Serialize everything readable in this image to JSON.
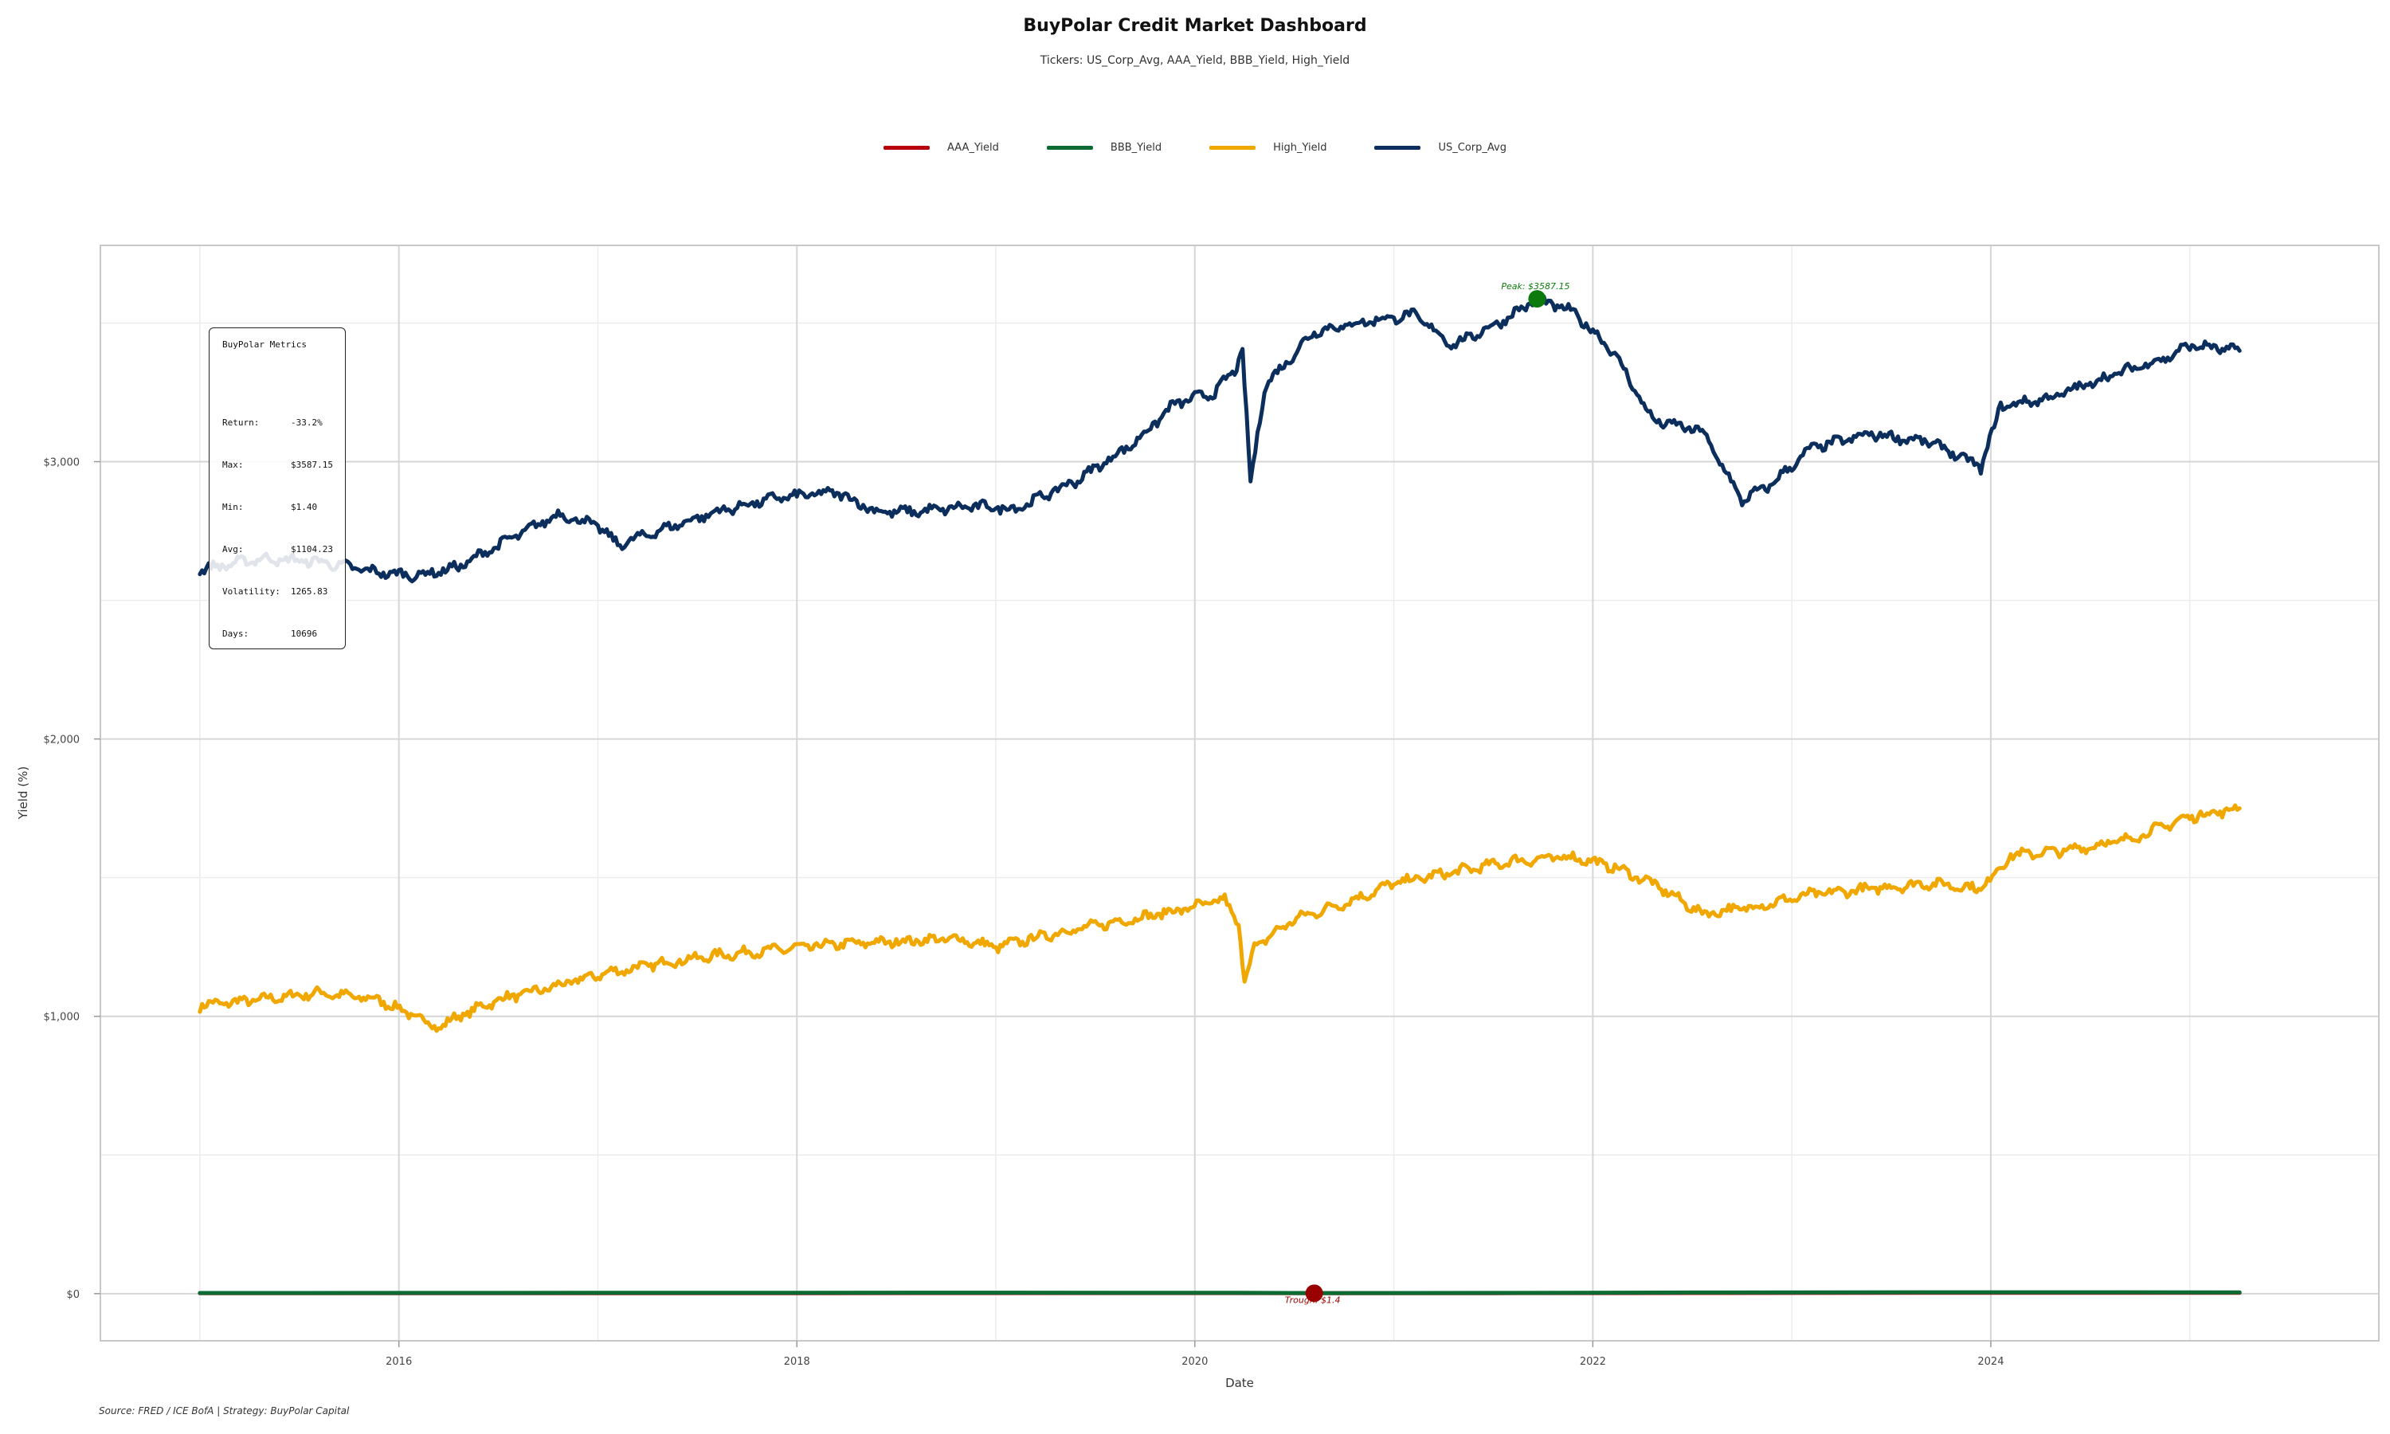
{
  "chart_data": {
    "type": "line",
    "title": "BuyPolar Credit Market Dashboard",
    "subtitle": "Tickers: US_Corp_Avg, AAA_Yield, BBB_Yield, High_Yield",
    "xlabel": "Date",
    "ylabel": "Yield (%)",
    "xlim": [
      2014.5,
      2025.95
    ],
    "ylim": [
      -170,
      3780
    ],
    "x_ticks": [
      2016,
      2018,
      2020,
      2022,
      2024
    ],
    "x_tick_labels": [
      "2016",
      "2018",
      "2020",
      "2022",
      "2024"
    ],
    "y_ticks": [
      0,
      1000,
      2000,
      3000
    ],
    "y_tick_labels": [
      "$0",
      "$1,000",
      "$2,000",
      "$3,000"
    ],
    "grid": true,
    "legend_position": "top",
    "series": [
      {
        "name": "AAA_Yield",
        "color": "#B8000A",
        "points": [
          [
            2015.0,
            1.5
          ],
          [
            2017.0,
            1.6
          ],
          [
            2019.0,
            2.2
          ],
          [
            2020.2,
            2.0
          ],
          [
            2020.6,
            1.4
          ],
          [
            2021.5,
            1.8
          ],
          [
            2022.5,
            2.5
          ],
          [
            2024.0,
            3.2
          ],
          [
            2025.25,
            3.0
          ]
        ]
      },
      {
        "name": "BBB_Yield",
        "color": "#0B6B32",
        "points": [
          [
            2015.0,
            2.5
          ],
          [
            2017.0,
            2.8
          ],
          [
            2019.0,
            3.5
          ],
          [
            2020.2,
            3.0
          ],
          [
            2020.6,
            2.2
          ],
          [
            2021.5,
            2.6
          ],
          [
            2022.5,
            4.0
          ],
          [
            2024.0,
            5.0
          ],
          [
            2025.25,
            4.8
          ]
        ]
      },
      {
        "name": "High_Yield",
        "color": "#F0A800",
        "points": [
          [
            2015.0,
            1040
          ],
          [
            2015.3,
            1060
          ],
          [
            2015.6,
            1085
          ],
          [
            2015.9,
            1060
          ],
          [
            2016.05,
            1010
          ],
          [
            2016.2,
            960
          ],
          [
            2016.3,
            1000
          ],
          [
            2016.5,
            1060
          ],
          [
            2016.8,
            1110
          ],
          [
            2017.0,
            1150
          ],
          [
            2017.3,
            1190
          ],
          [
            2017.6,
            1220
          ],
          [
            2017.9,
            1240
          ],
          [
            2018.2,
            1260
          ],
          [
            2018.5,
            1270
          ],
          [
            2018.8,
            1280
          ],
          [
            2019.0,
            1250
          ],
          [
            2019.3,
            1300
          ],
          [
            2019.6,
            1340
          ],
          [
            2019.9,
            1380
          ],
          [
            2020.15,
            1420
          ],
          [
            2020.22,
            1330
          ],
          [
            2020.25,
            1130
          ],
          [
            2020.3,
            1250
          ],
          [
            2020.5,
            1350
          ],
          [
            2020.8,
            1420
          ],
          [
            2021.0,
            1480
          ],
          [
            2021.3,
            1520
          ],
          [
            2021.6,
            1560
          ],
          [
            2021.9,
            1575
          ],
          [
            2022.1,
            1540
          ],
          [
            2022.3,
            1480
          ],
          [
            2022.55,
            1370
          ],
          [
            2022.85,
            1400
          ],
          [
            2023.1,
            1440
          ],
          [
            2023.4,
            1460
          ],
          [
            2023.7,
            1480
          ],
          [
            2023.95,
            1460
          ],
          [
            2024.1,
            1580
          ],
          [
            2024.4,
            1600
          ],
          [
            2024.7,
            1640
          ],
          [
            2025.0,
            1720
          ],
          [
            2025.25,
            1750
          ]
        ]
      },
      {
        "name": "US_Corp_Avg",
        "color": "#0B2E5C",
        "points": [
          [
            2015.0,
            2610
          ],
          [
            2015.3,
            2650
          ],
          [
            2015.6,
            2640
          ],
          [
            2015.9,
            2600
          ],
          [
            2016.1,
            2590
          ],
          [
            2016.3,
            2620
          ],
          [
            2016.5,
            2700
          ],
          [
            2016.8,
            2810
          ],
          [
            2017.0,
            2770
          ],
          [
            2017.1,
            2700
          ],
          [
            2017.3,
            2750
          ],
          [
            2017.6,
            2820
          ],
          [
            2017.9,
            2870
          ],
          [
            2018.2,
            2890
          ],
          [
            2018.4,
            2820
          ],
          [
            2018.6,
            2820
          ],
          [
            2018.9,
            2840
          ],
          [
            2019.1,
            2830
          ],
          [
            2019.4,
            2930
          ],
          [
            2019.7,
            3070
          ],
          [
            2019.9,
            3210
          ],
          [
            2020.1,
            3250
          ],
          [
            2020.2,
            3330
          ],
          [
            2020.24,
            3400
          ],
          [
            2020.28,
            2920
          ],
          [
            2020.35,
            3270
          ],
          [
            2020.6,
            3470
          ],
          [
            2020.9,
            3510
          ],
          [
            2021.1,
            3530
          ],
          [
            2021.3,
            3420
          ],
          [
            2021.55,
            3510
          ],
          [
            2021.72,
            3587
          ],
          [
            2021.9,
            3540
          ],
          [
            2022.1,
            3400
          ],
          [
            2022.3,
            3150
          ],
          [
            2022.55,
            3110
          ],
          [
            2022.75,
            2860
          ],
          [
            2022.9,
            2920
          ],
          [
            2023.1,
            3050
          ],
          [
            2023.4,
            3100
          ],
          [
            2023.7,
            3070
          ],
          [
            2023.95,
            2980
          ],
          [
            2024.05,
            3200
          ],
          [
            2024.3,
            3230
          ],
          [
            2024.6,
            3310
          ],
          [
            2024.9,
            3380
          ],
          [
            2025.0,
            3420
          ],
          [
            2025.25,
            3400
          ]
        ]
      }
    ],
    "annotations": [
      {
        "label": "Peak: $3587.15",
        "x": 2021.72,
        "y": 3587.15,
        "color": "#0C7A0C"
      },
      {
        "label": "Trough: $1.4",
        "x": 2020.6,
        "y": 1.4,
        "color": "#9B0000"
      }
    ]
  },
  "metrics": {
    "title": "BuyPolar Metrics",
    "rows": [
      {
        "key": "Return:",
        "value": "-33.2%"
      },
      {
        "key": "Max:",
        "value": "$3587.15"
      },
      {
        "key": "Min:",
        "value": "$1.40"
      },
      {
        "key": "Avg:",
        "value": "$1104.23"
      },
      {
        "key": "Volatility:",
        "value": "1265.83"
      },
      {
        "key": "Days:",
        "value": "10696"
      }
    ]
  },
  "footer": {
    "caption": "Source: FRED / ICE BofA | Strategy: BuyPolar Capital"
  }
}
